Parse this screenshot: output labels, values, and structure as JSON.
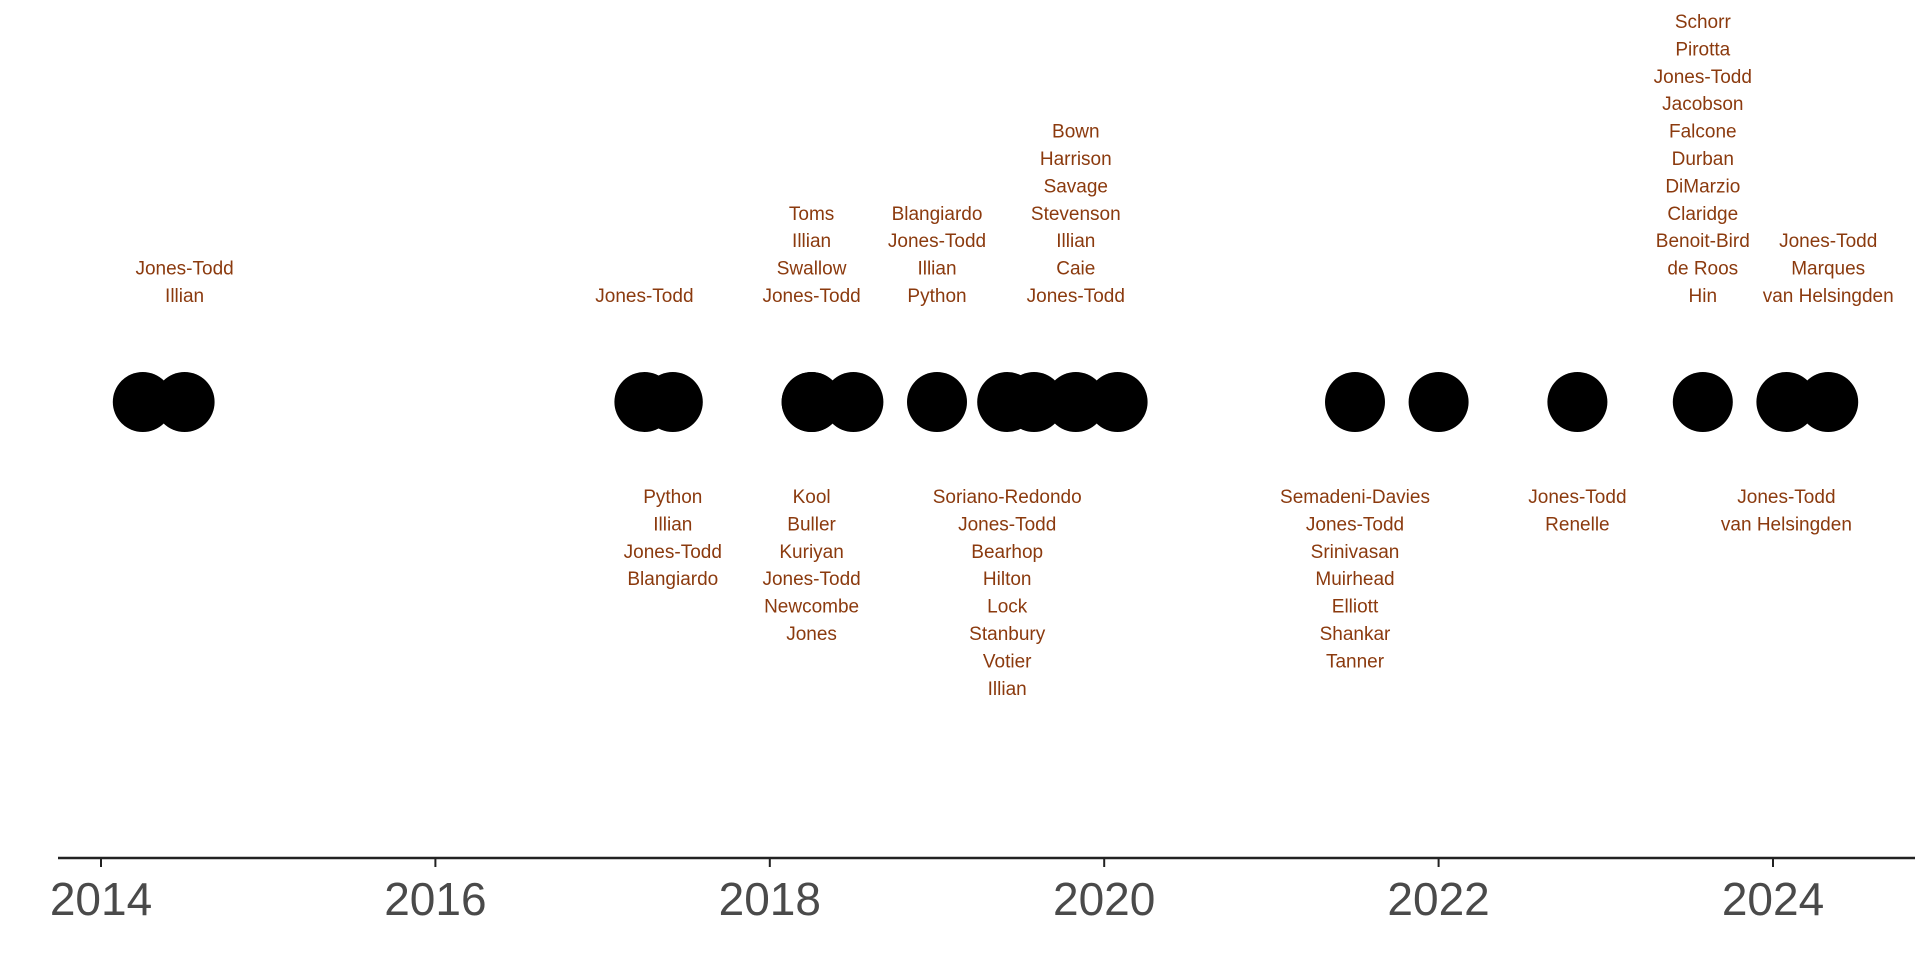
{
  "chart_data": {
    "type": "scatter",
    "title": "",
    "xlabel": "",
    "ylabel": "",
    "xlim": [
      2013.75,
      2024.85
    ],
    "x_ticks": [
      "2014",
      "2016",
      "2018",
      "2020",
      "2022",
      "2024"
    ],
    "grid": false,
    "legend": "none",
    "colors": {
      "point": "#000000",
      "label": "#8b3a0e",
      "axis": "#222222",
      "tick_text": "#4a4a4a"
    },
    "points": [
      {
        "x": 2014.25,
        "side": "below",
        "authors": []
      },
      {
        "x": 2014.5,
        "side": "above",
        "authors": [
          "Jones-Todd",
          "Illian"
        ]
      },
      {
        "x": 2017.25,
        "side": "above",
        "authors": [
          "Jones-Todd"
        ]
      },
      {
        "x": 2017.42,
        "side": "below",
        "authors": [
          "Python",
          "Illian",
          "Jones-Todd",
          "Blangiardo"
        ]
      },
      {
        "x": 2018.25,
        "side": "above",
        "authors": [
          "Toms",
          "Illian",
          "Swallow",
          "Jones-Todd"
        ]
      },
      {
        "x": 2018.25,
        "side": "below",
        "authors": [
          "Kool",
          "Buller",
          "Kuriyan",
          "Jones-Todd",
          "Newcombe",
          "Jones"
        ]
      },
      {
        "x": 2018.5,
        "side": "below",
        "authors": []
      },
      {
        "x": 2019.0,
        "side": "above",
        "authors": [
          "Blangiardo",
          "Jones-Todd",
          "Illian",
          "Python"
        ]
      },
      {
        "x": 2019.42,
        "side": "below",
        "authors": [
          "Soriano-Redondo",
          "Jones-Todd",
          "Bearhop",
          "Hilton",
          "Lock",
          "Stanbury",
          "Votier",
          "Illian"
        ]
      },
      {
        "x": 2019.58,
        "side": "below",
        "authors": []
      },
      {
        "x": 2019.83,
        "side": "above",
        "authors": [
          "Bown",
          "Harrison",
          "Savage",
          "Stevenson",
          "Illian",
          "Caie",
          "Jones-Todd"
        ]
      },
      {
        "x": 2020.08,
        "side": "below",
        "authors": []
      },
      {
        "x": 2021.5,
        "side": "below",
        "authors": [
          "Semadeni-Davies",
          "Jones-Todd",
          "Srinivasan",
          "Muirhead",
          "Elliott",
          "Shankar",
          "Tanner"
        ]
      },
      {
        "x": 2022.0,
        "side": "below",
        "authors": []
      },
      {
        "x": 2022.83,
        "side": "below",
        "authors": [
          "Jones-Todd",
          "Renelle"
        ]
      },
      {
        "x": 2023.58,
        "side": "above",
        "authors": [
          "Schorr",
          "Pirotta",
          "Jones-Todd",
          "Jacobson",
          "Falcone",
          "Durban",
          "DiMarzio",
          "Claridge",
          "Benoit-Bird",
          "de Roos",
          "Hin"
        ]
      },
      {
        "x": 2024.08,
        "side": "below",
        "authors": [
          "Jones-Todd",
          "van Helsingden"
        ]
      },
      {
        "x": 2024.33,
        "side": "above",
        "authors": [
          "Jones-Todd",
          "Marques",
          "van Helsingden"
        ]
      }
    ]
  }
}
